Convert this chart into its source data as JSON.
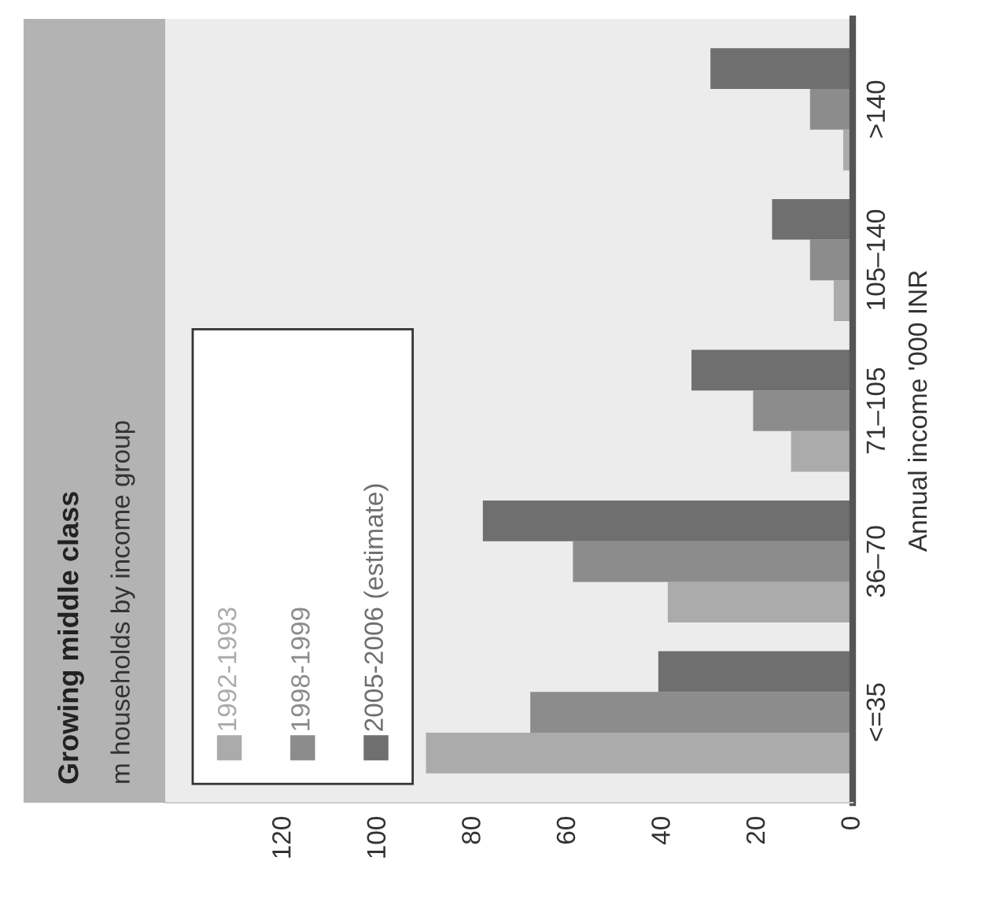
{
  "chart_data": {
    "type": "bar",
    "orientation": "horizontal",
    "title": "Growing middle class",
    "subtitle": "m households by income group",
    "ylabel": "Annual income '000 INR",
    "categories": [
      ">140",
      "105–140",
      "71–105",
      "36–70",
      "<=35"
    ],
    "series": [
      {
        "name": "1992-1993",
        "color": "#ababab",
        "values": [
          2,
          4,
          13,
          39,
          90
        ]
      },
      {
        "name": "1998-1999",
        "color": "#8c8c8c",
        "values": [
          9,
          9,
          21,
          59,
          68
        ]
      },
      {
        "name": "2005-2006 (estimate)",
        "color": "#6f6f6f",
        "values": [
          30,
          17,
          34,
          78,
          41
        ]
      }
    ],
    "xlim": [
      145,
      0
    ],
    "xticks": [
      0,
      20,
      40,
      60,
      80,
      100,
      120
    ],
    "legend": "bottom left",
    "grid": false
  }
}
